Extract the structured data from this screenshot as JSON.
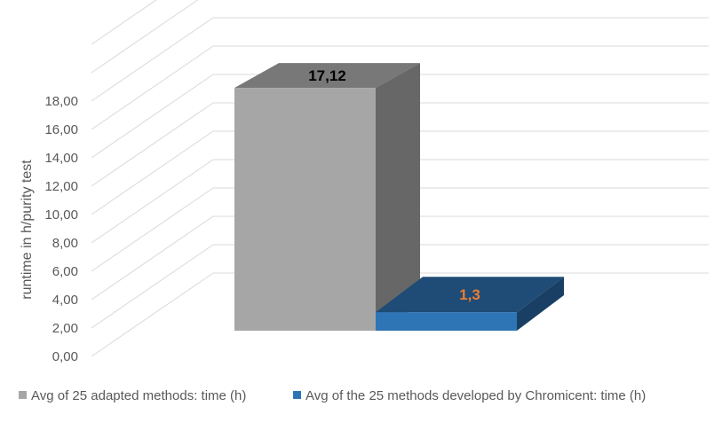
{
  "chart_data": {
    "type": "bar",
    "title": "",
    "xlabel": "",
    "ylabel": "runtime in h/purity test",
    "ylim": [
      0,
      18
    ],
    "yticks": [
      "0,00",
      "2,00",
      "4,00",
      "6,00",
      "8,00",
      "10,00",
      "12,00",
      "14,00",
      "16,00",
      "18,00"
    ],
    "grid": true,
    "legend_position": "bottom",
    "three_d": true,
    "series": [
      {
        "name": "Avg of 25 adapted methods: time (h)",
        "values": [
          17.12
        ],
        "label": "17,12",
        "color": "#a6a6a6",
        "label_color": "#000000"
      },
      {
        "name": "Avg of the 25 methods developed by Chromicent: time (h)",
        "values": [
          1.3
        ],
        "label": "1,3",
        "color": "#2e75b6",
        "label_color": "#ed7d31"
      }
    ]
  }
}
